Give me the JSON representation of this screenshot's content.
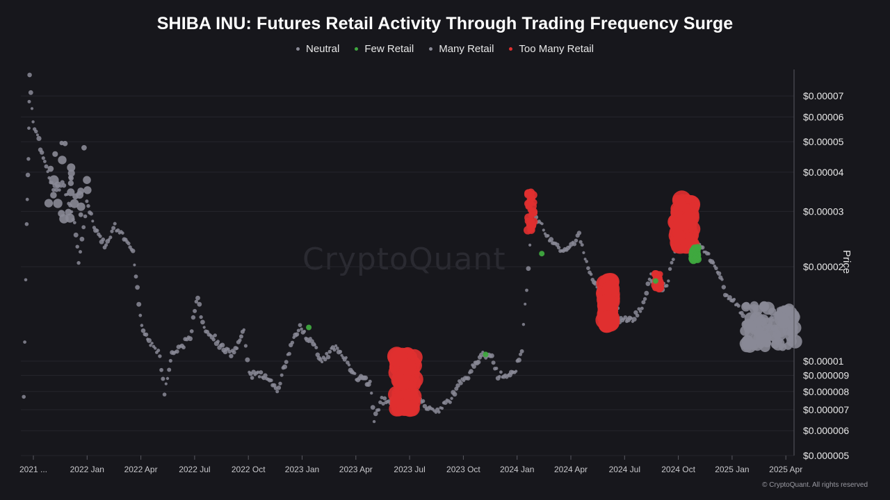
{
  "chart_data": {
    "type": "scatter",
    "title": "SHIBA INU: Futures Retail Activity Through Trading Frequency Surge",
    "ylabel": "Price",
    "yscale": "log",
    "ylim": [
      5e-06,
      8.5e-05
    ],
    "grid": true,
    "legend_position": "top-center",
    "x_ticks": [
      "2021 ...",
      "2022 Jan",
      "2022 Apr",
      "2022 Jul",
      "2022 Oct",
      "2023 Jan",
      "2023 Apr",
      "2023 Jul",
      "2023 Oct",
      "2024 Jan",
      "2024 Apr",
      "2024 Jul",
      "2024 Oct",
      "2025 Jan",
      "2025 Apr"
    ],
    "y_ticks": [
      {
        "value": 7e-05,
        "label": "$0.00007"
      },
      {
        "value": 6e-05,
        "label": "$0.00006"
      },
      {
        "value": 5e-05,
        "label": "$0.00005"
      },
      {
        "value": 4e-05,
        "label": "$0.00004"
      },
      {
        "value": 3e-05,
        "label": "$0.00003"
      },
      {
        "value": 2e-05,
        "label": "$0.00002"
      },
      {
        "value": 1e-05,
        "label": "$0.00001"
      },
      {
        "value": 9e-06,
        "label": "$0.000009"
      },
      {
        "value": 8e-06,
        "label": "$0.000008"
      },
      {
        "value": 7e-06,
        "label": "$0.000007"
      },
      {
        "value": 6e-06,
        "label": "$0.000006"
      },
      {
        "value": 5e-06,
        "label": "$0.000005"
      }
    ],
    "series": [
      {
        "name": "Neutral",
        "color": "#8a8a96"
      },
      {
        "name": "Few Retail",
        "color": "#3fa83f"
      },
      {
        "name": "Many Retail",
        "color": "#8a8a96"
      },
      {
        "name": "Too Many Retail",
        "color": "#e03030"
      }
    ],
    "price_path": [
      [
        "2021-10-20",
        7.5e-06
      ],
      [
        "2021-10-25",
        2.8e-05
      ],
      [
        "2021-10-28",
        4.5e-05
      ],
      [
        "2021-10-30",
        8e-05
      ],
      [
        "2021-11-05",
        5.8e-05
      ],
      [
        "2021-11-15",
        5e-05
      ],
      [
        "2021-11-25",
        4.3e-05
      ],
      [
        "2021-12-05",
        3.7e-05
      ],
      [
        "2021-12-15",
        3.5e-05
      ],
      [
        "2021-12-25",
        3.7e-05
      ],
      [
        "2022-01-05",
        3.2e-05
      ],
      [
        "2022-01-15",
        2.8e-05
      ],
      [
        "2022-01-22",
        2.1e-05
      ],
      [
        "2022-02-05",
        3.2e-05
      ],
      [
        "2022-02-20",
        2.6e-05
      ],
      [
        "2022-03-10",
        2.3e-05
      ],
      [
        "2022-03-25",
        2.7e-05
      ],
      [
        "2022-04-10",
        2.5e-05
      ],
      [
        "2022-04-25",
        2.2e-05
      ],
      [
        "2022-05-10",
        1.3e-05
      ],
      [
        "2022-05-25",
        1.15e-05
      ],
      [
        "2022-06-10",
        1.05e-05
      ],
      [
        "2022-06-18",
        8e-06
      ],
      [
        "2022-07-01",
        1.05e-05
      ],
      [
        "2022-07-15",
        1.1e-05
      ],
      [
        "2022-08-01",
        1.2e-05
      ],
      [
        "2022-08-14",
        1.6e-05
      ],
      [
        "2022-08-25",
        1.25e-05
      ],
      [
        "2022-09-10",
        1.2e-05
      ],
      [
        "2022-09-25",
        1.1e-05
      ],
      [
        "2022-10-10",
        1.05e-05
      ],
      [
        "2022-10-25",
        1.15e-05
      ],
      [
        "2022-11-01",
        1.25e-05
      ],
      [
        "2022-11-10",
        9e-06
      ],
      [
        "2022-11-25",
        9e-06
      ],
      [
        "2022-12-10",
        9e-06
      ],
      [
        "2022-12-28",
        8e-06
      ],
      [
        "2023-01-15",
        1.05e-05
      ],
      [
        "2023-02-05",
        1.3e-05
      ],
      [
        "2023-02-15",
        1.2e-05
      ],
      [
        "2023-02-28",
        1.15e-05
      ],
      [
        "2023-03-12",
        1e-05
      ],
      [
        "2023-04-05",
        1.1e-05
      ],
      [
        "2023-04-20",
        1.05e-05
      ],
      [
        "2023-05-10",
        9e-06
      ],
      [
        "2023-06-05",
        8.5e-06
      ],
      [
        "2023-06-12",
        6.5e-06
      ],
      [
        "2023-06-25",
        7.5e-06
      ],
      [
        "2023-07-10",
        7.5e-06
      ],
      [
        "2023-07-25",
        7.8e-06
      ],
      [
        "2023-08-15",
        7e-06
      ],
      [
        "2023-09-01",
        7.5e-06
      ],
      [
        "2023-09-15",
        7e-06
      ],
      [
        "2023-10-01",
        7e-06
      ],
      [
        "2023-10-20",
        7.5e-06
      ],
      [
        "2023-11-05",
        8.5e-06
      ],
      [
        "2023-11-20",
        9e-06
      ],
      [
        "2023-12-05",
        1e-05
      ],
      [
        "2023-12-15",
        1.05e-05
      ],
      [
        "2023-12-28",
        1.05e-05
      ],
      [
        "2024-01-10",
        9e-06
      ],
      [
        "2024-01-25",
        9e-06
      ],
      [
        "2024-02-10",
        9.5e-06
      ],
      [
        "2024-02-20",
        1.1e-05
      ],
      [
        "2024-03-02",
        2e-05
      ],
      [
        "2024-03-10",
        3e-05
      ],
      [
        "2024-04-10",
        2.4e-05
      ],
      [
        "2024-05-01",
        2.2e-05
      ],
      [
        "2024-05-28",
        2.5e-05
      ],
      [
        "2024-06-15",
        1.9e-05
      ],
      [
        "2024-07-05",
        1.6e-05
      ],
      [
        "2024-07-25",
        1.75e-05
      ],
      [
        "2024-08-05",
        1.35e-05
      ],
      [
        "2024-08-25",
        1.35e-05
      ],
      [
        "2024-09-10",
        1.45e-05
      ],
      [
        "2024-09-28",
        1.85e-05
      ],
      [
        "2024-10-10",
        1.7e-05
      ],
      [
        "2024-10-25",
        1.75e-05
      ],
      [
        "2024-11-08",
        2.2e-05
      ],
      [
        "2024-11-20",
        2.8e-05
      ],
      [
        "2024-12-05",
        3.1e-05
      ],
      [
        "2024-12-20",
        2.3e-05
      ],
      [
        "2025-01-10",
        2.1e-05
      ],
      [
        "2025-01-25",
        1.85e-05
      ],
      [
        "2025-02-05",
        1.6e-05
      ],
      [
        "2025-02-25",
        1.5e-05
      ],
      [
        "2025-03-10",
        1.3e-05
      ],
      [
        "2025-03-25",
        1.3e-05
      ],
      [
        "2025-04-08",
        1.15e-05
      ],
      [
        "2025-04-20",
        1.35e-05
      ],
      [
        "2025-05-10",
        1.45e-05
      ],
      [
        "2025-05-25",
        1.4e-05
      ]
    ],
    "highlight_clusters": [
      {
        "class": "Too Many Retail",
        "start": "2024-03-01",
        "end": "2024-03-12",
        "price_min": 2.6e-05,
        "price_max": 3.5e-05
      },
      {
        "class": "Too Many Retail",
        "start": "2024-07-10",
        "end": "2024-07-22",
        "price_min": 1.3e-05,
        "price_max": 1.8e-05
      },
      {
        "class": "Too Many Retail",
        "start": "2024-10-05",
        "end": "2024-10-14",
        "price_min": 1.7e-05,
        "price_max": 1.9e-05
      },
      {
        "class": "Too Many Retail",
        "start": "2024-11-10",
        "end": "2024-12-08",
        "price_min": 2.3e-05,
        "price_max": 3.3e-05
      },
      {
        "class": "Few Retail",
        "start": "2024-12-08",
        "end": "2024-12-18",
        "price_min": 2.1e-05,
        "price_max": 2.3e-05
      },
      {
        "class": "Too Many Retail",
        "start": "2023-07-20",
        "end": "2023-08-20",
        "price_min": 7e-06,
        "price_max": 1.05e-05
      }
    ]
  },
  "watermark": "CryptoQuant",
  "copyright": "© CryptoQuant. All rights reserved"
}
